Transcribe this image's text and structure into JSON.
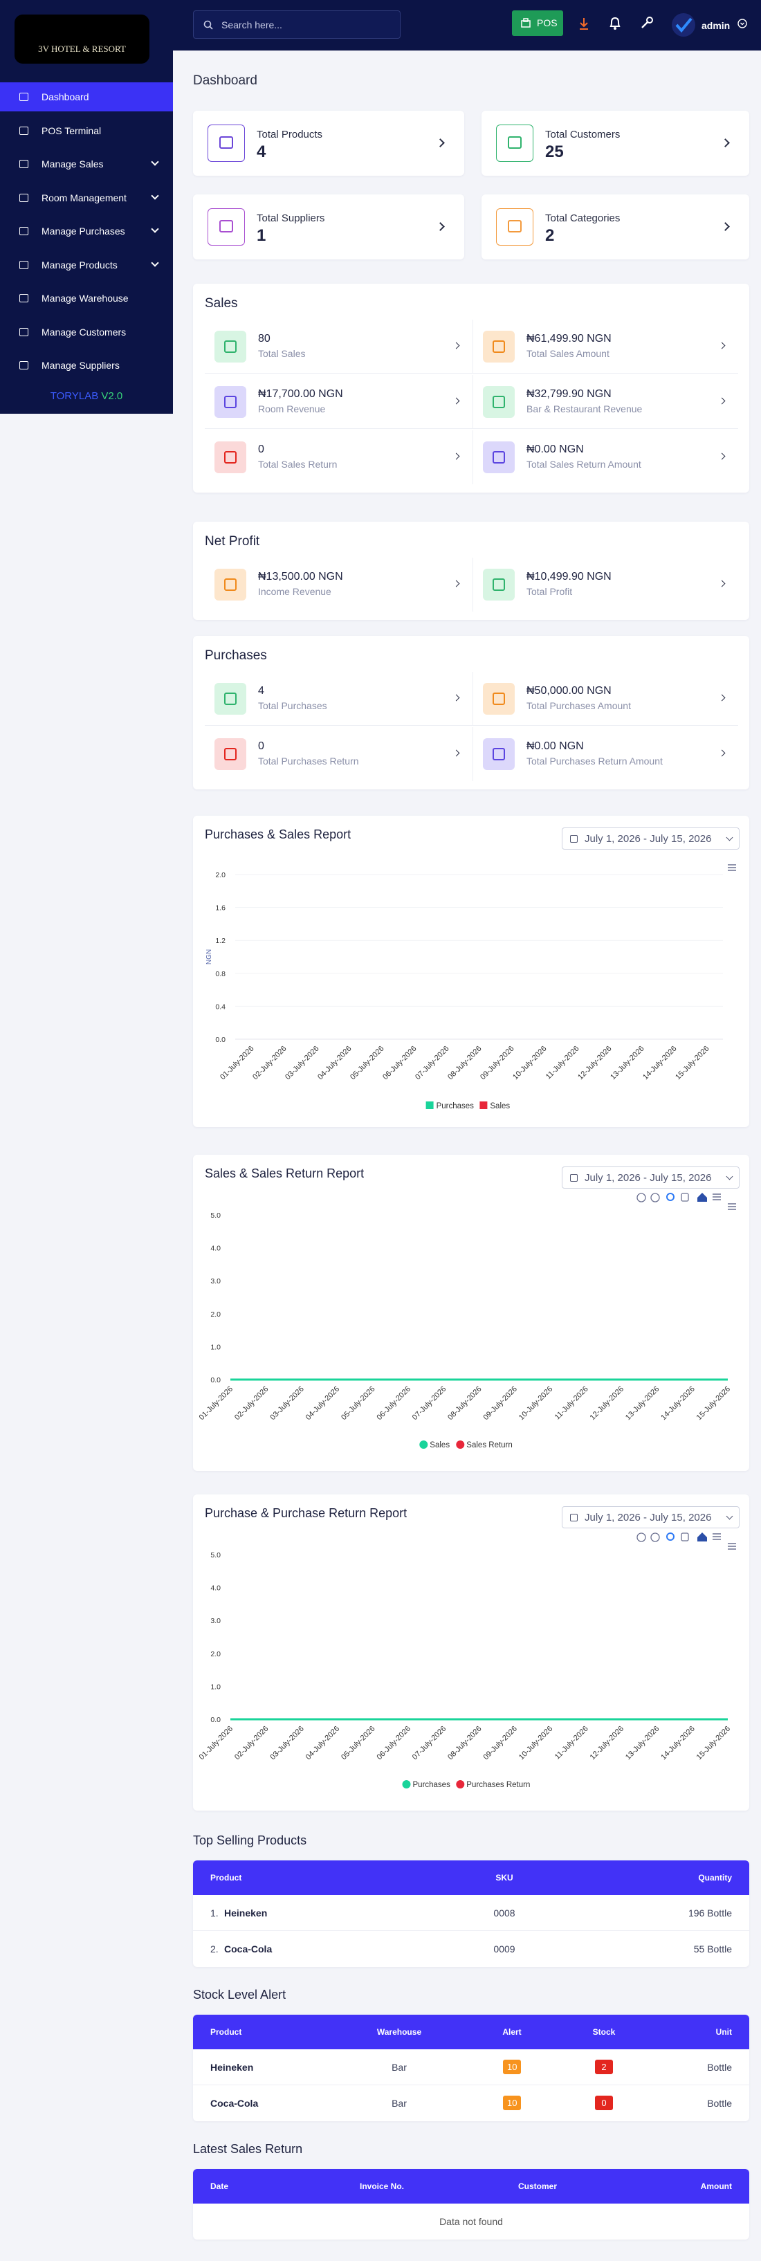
{
  "sidebar": {
    "brand": "3V HOTEL & RESORT",
    "menu": [
      {
        "label": "Dashboard",
        "active": true
      },
      {
        "label": "POS Terminal"
      },
      {
        "label": "Manage Sales",
        "submenu": true
      },
      {
        "label": "Room Management",
        "submenu": true
      },
      {
        "label": "Manage Purchases",
        "submenu": true
      },
      {
        "label": "Manage Products",
        "submenu": true
      },
      {
        "label": "Manage Warehouse"
      },
      {
        "label": "Manage Customers"
      },
      {
        "label": "Manage Suppliers"
      }
    ],
    "footer_name": "TORYLAB",
    "footer_version": "V2.0"
  },
  "topbar": {
    "search_placeholder": "Search here...",
    "pos_label": "POS",
    "user": "admin"
  },
  "page_title": "Dashboard",
  "stat_cards": [
    {
      "label": "Total Products",
      "value": 4,
      "color": "#6a45d8"
    },
    {
      "label": "Total Customers",
      "value": 25,
      "color": "#2fb36d"
    },
    {
      "label": "Total Suppliers",
      "value": 1,
      "color": "#a94fd1"
    },
    {
      "label": "Total Categories",
      "value": 2,
      "color": "#f39a3d"
    }
  ],
  "panels": [
    {
      "title": "Sales",
      "items": [
        {
          "value": 80,
          "label": "Total Sales",
          "tone": "green"
        },
        {
          "value": "₦61,499.90 NGN",
          "label": "Total Sales Amount",
          "tone": "orange"
        },
        {
          "value": "₦17,700.00 NGN",
          "label": "Room Revenue",
          "tone": "purple"
        },
        {
          "value": "₦32,799.90 NGN",
          "label": "Bar & Restaurant Revenue",
          "tone": "green"
        },
        {
          "value": 0,
          "label": "Total Sales Return",
          "tone": "red"
        },
        {
          "value": "₦0.00 NGN",
          "label": "Total Sales Return Amount",
          "tone": "purple"
        }
      ]
    },
    {
      "title": "Net Profit",
      "items": [
        {
          "value": "₦13,500.00 NGN",
          "label": "Income Revenue",
          "tone": "orange"
        },
        {
          "value": "₦10,499.90 NGN",
          "label": "Total Profit",
          "tone": "green"
        }
      ]
    },
    {
      "title": "Purchases",
      "items": [
        {
          "value": 4,
          "label": "Total Purchases",
          "tone": "green"
        },
        {
          "value": "₦50,000.00 NGN",
          "label": "Total Purchases Amount",
          "tone": "orange"
        },
        {
          "value": 0,
          "label": "Total Purchases Return",
          "tone": "red"
        },
        {
          "value": "₦0.00 NGN",
          "label": "Total Purchases Return Amount",
          "tone": "purple"
        }
      ]
    }
  ],
  "reports": [
    {
      "title": "Purchases & Sales Report",
      "date_range": "July 1, 2026 - July 15, 2026",
      "type": "bar",
      "y_label": "NGN",
      "ylim": [
        0,
        2
      ],
      "yticks": [
        {
          "value": 0,
          "label": "0.0"
        },
        0.4,
        0.8,
        1.2,
        1.6,
        {
          "value": 2,
          "label": "2.0"
        }
      ],
      "grid": true,
      "zoom_tools": false,
      "categories": [
        "01-July-2026",
        "02-July-2026",
        "03-July-2026",
        "04-July-2026",
        "05-July-2026",
        "06-July-2026",
        "07-July-2026",
        "08-July-2026",
        "09-July-2026",
        "10-July-2026",
        "11-July-2026",
        "12-July-2026",
        "13-July-2026",
        "14-July-2026",
        "15-July-2026"
      ],
      "series": [
        {
          "name": "Purchases",
          "color": "#19d49a",
          "values": [
            0,
            0,
            0,
            0,
            0,
            0,
            0,
            0,
            0,
            0,
            0,
            0,
            0,
            0,
            0
          ]
        },
        {
          "name": "Sales",
          "color": "#e8273a",
          "values": [
            0,
            0,
            0,
            0,
            0,
            0,
            0,
            0,
            0,
            0,
            0,
            0,
            0,
            0,
            0
          ]
        }
      ]
    },
    {
      "title": "Sales & Sales Return Report",
      "date_range": "July 1, 2026 - July 15, 2026",
      "type": "line",
      "ylim": [
        0,
        5
      ],
      "yticks": [
        {
          "value": 0,
          "label": "0.0"
        },
        {
          "value": 1,
          "label": "1.0"
        },
        {
          "value": 2,
          "label": "2.0"
        },
        {
          "value": 3,
          "label": "3.0"
        },
        {
          "value": 4,
          "label": "4.0"
        },
        {
          "value": 5,
          "label": "5.0"
        }
      ],
      "grid": false,
      "zoom_tools": true,
      "categories": [
        "01-July-2026",
        "02-July-2026",
        "03-July-2026",
        "04-July-2026",
        "05-July-2026",
        "06-July-2026",
        "07-July-2026",
        "08-July-2026",
        "09-July-2026",
        "10-July-2026",
        "11-July-2026",
        "12-July-2026",
        "13-July-2026",
        "14-July-2026",
        "15-July-2026"
      ],
      "series": [
        {
          "name": "Sales Return",
          "color": "#e8273a",
          "values": [
            0,
            0,
            0,
            0,
            0,
            0,
            0,
            0,
            0,
            0,
            0,
            0,
            0,
            0,
            0
          ]
        },
        {
          "name": "Sales",
          "color": "#19d49a",
          "values": [
            0,
            0,
            0,
            0,
            0,
            0,
            0,
            0,
            0,
            0,
            0,
            0,
            0,
            0,
            0
          ]
        }
      ]
    },
    {
      "title": "Purchase & Purchase Return Report",
      "date_range": "July 1, 2026 - July 15, 2026",
      "type": "line",
      "ylim": [
        0,
        5
      ],
      "yticks": [
        {
          "value": 0,
          "label": "0.0"
        },
        {
          "value": 1,
          "label": "1.0"
        },
        {
          "value": 2,
          "label": "2.0"
        },
        {
          "value": 3,
          "label": "3.0"
        },
        {
          "value": 4,
          "label": "4.0"
        },
        {
          "value": 5,
          "label": "5.0"
        }
      ],
      "grid": false,
      "zoom_tools": true,
      "categories": [
        "01-July-2026",
        "02-July-2026",
        "03-July-2026",
        "04-July-2026",
        "05-July-2026",
        "06-July-2026",
        "07-July-2026",
        "08-July-2026",
        "09-July-2026",
        "10-July-2026",
        "11-July-2026",
        "12-July-2026",
        "13-July-2026",
        "14-July-2026",
        "15-July-2026"
      ],
      "series": [
        {
          "name": "Purchases Return",
          "color": "#e8273a",
          "values": [
            0,
            0,
            0,
            0,
            0,
            0,
            0,
            0,
            0,
            0,
            0,
            0,
            0,
            0,
            0
          ]
        },
        {
          "name": "Purchases",
          "color": "#19d49a",
          "values": [
            0,
            0,
            0,
            0,
            0,
            0,
            0,
            0,
            0,
            0,
            0,
            0,
            0,
            0,
            0
          ]
        }
      ]
    }
  ],
  "tables": [
    {
      "title": "Top Selling Products",
      "columns": [
        {
          "label": "Product"
        },
        {
          "label": "SKU"
        },
        {
          "label": "Quantity"
        }
      ],
      "rows": [
        [
          "1.",
          "Heineken",
          "0008",
          "196 Bottle"
        ],
        [
          "2.",
          "Coca-Cola",
          "0009",
          "55 Bottle"
        ]
      ]
    },
    {
      "title": "Stock Level Alert",
      "columns": [
        {
          "label": "Product"
        },
        {
          "label": "Warehouse"
        },
        {
          "label": "Alert",
          "badge_color": "#f7931e"
        },
        {
          "label": "Stock",
          "badge_color": "#e3261f"
        },
        {
          "label": "Unit"
        }
      ],
      "rows": [
        [
          "Heineken",
          "Bar",
          10,
          2,
          "Bottle"
        ],
        [
          "Coca-Cola",
          "Bar",
          10,
          0,
          "Bottle"
        ]
      ]
    },
    {
      "title": "Latest Sales Return",
      "columns": [
        {
          "label": "Date"
        },
        {
          "label": "Invoice No."
        },
        {
          "label": "Customer"
        },
        {
          "label": "Amount"
        }
      ],
      "rows": [],
      "empty_text": "Data not found"
    }
  ]
}
